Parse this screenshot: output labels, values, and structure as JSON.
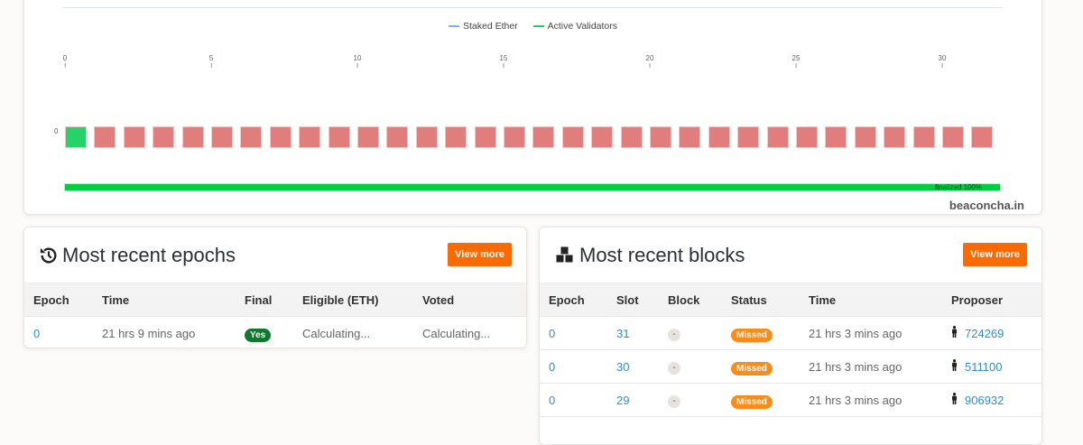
{
  "chart": {
    "legend": [
      {
        "label": "Staked Ether",
        "color": "#7cb5ec"
      },
      {
        "label": "Active Validators",
        "color": "#2ecc71"
      }
    ],
    "x_ticks": [
      "0",
      "5",
      "10",
      "15",
      "20",
      "25",
      "30"
    ],
    "y_label": "0",
    "slots": [
      "proposed",
      "missed",
      "missed",
      "missed",
      "missed",
      "missed",
      "missed",
      "missed",
      "missed",
      "missed",
      "missed",
      "missed",
      "missed",
      "missed",
      "missed",
      "missed",
      "missed",
      "missed",
      "missed",
      "missed",
      "missed",
      "missed",
      "missed",
      "missed",
      "missed",
      "missed",
      "missed",
      "missed",
      "missed",
      "missed",
      "missed",
      "missed"
    ],
    "slot_colors": {
      "proposed": "#28d26b",
      "missed": "#e27d7d"
    },
    "finalized_label": "finalized 100%",
    "finalized_percent": 100,
    "brand": "beaconcha.in"
  },
  "epochs": {
    "title": "Most recent epochs",
    "view_more": "View more",
    "columns": [
      "Epoch",
      "Time",
      "Final",
      "Eligible (ETH)",
      "Voted"
    ],
    "rows": [
      {
        "epoch": "0",
        "time": "21 hrs 9 mins ago",
        "final": "Yes",
        "eligible": "Calculating...",
        "voted": "Calculating..."
      }
    ]
  },
  "blocks": {
    "title": "Most recent blocks",
    "view_more": "View more",
    "columns": [
      "Epoch",
      "Slot",
      "Block",
      "Status",
      "Time",
      "Proposer"
    ],
    "rows": [
      {
        "epoch": "0",
        "slot": "31",
        "block": "-",
        "status": "Missed",
        "time": "21 hrs 3 mins ago",
        "proposer": "724269"
      },
      {
        "epoch": "0",
        "slot": "30",
        "block": "-",
        "status": "Missed",
        "time": "21 hrs 3 mins ago",
        "proposer": "511100"
      },
      {
        "epoch": "0",
        "slot": "29",
        "block": "-",
        "status": "Missed",
        "time": "21 hrs 3 mins ago",
        "proposer": "906932"
      }
    ]
  }
}
